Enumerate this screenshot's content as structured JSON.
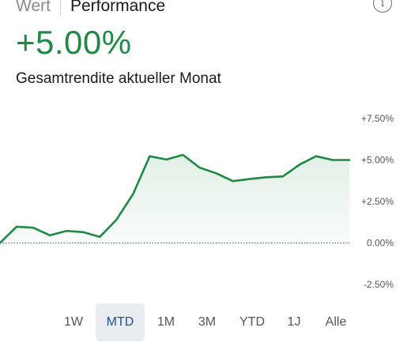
{
  "tabs": [
    {
      "label": "Wert",
      "active": false
    },
    {
      "label": "Performance",
      "active": true
    }
  ],
  "info_icon": "info-circle-icon",
  "info_glyph": "i",
  "summary": {
    "value": "+5.00%",
    "caption": "Gesamtrendite aktueller Monat"
  },
  "colors": {
    "positive": "#1e8a44",
    "active_range_bg": "#e9edf2",
    "active_range_text": "#1f4e9c"
  },
  "chart_data": {
    "type": "area",
    "x": [
      1,
      2,
      3,
      4,
      5,
      6,
      7,
      8,
      9,
      10,
      11,
      12,
      13,
      14,
      15,
      16,
      17,
      18,
      19,
      20,
      21,
      22
    ],
    "values": [
      0.0,
      0.98,
      0.92,
      0.46,
      0.73,
      0.65,
      0.37,
      1.4,
      2.95,
      5.23,
      5.03,
      5.31,
      4.54,
      4.2,
      3.73,
      3.85,
      3.96,
      4.01,
      4.72,
      5.23,
      5.0,
      5.0
    ],
    "ylim": [
      -2.5,
      7.5
    ],
    "yticks": [
      "+7.50%",
      "+5.00%",
      "+2.50%",
      "0.00%",
      "-2.50%"
    ],
    "ytick_values": [
      7.5,
      5.0,
      2.5,
      0.0,
      -2.5
    ],
    "baseline": 0.0,
    "grid": false,
    "line_color": "#1e8a44"
  },
  "ranges": [
    {
      "label": "1W",
      "active": false
    },
    {
      "label": "MTD",
      "active": true
    },
    {
      "label": "1M",
      "active": false
    },
    {
      "label": "3M",
      "active": false
    },
    {
      "label": "YTD",
      "active": false
    },
    {
      "label": "1J",
      "active": false
    },
    {
      "label": "Alle",
      "active": false
    }
  ]
}
